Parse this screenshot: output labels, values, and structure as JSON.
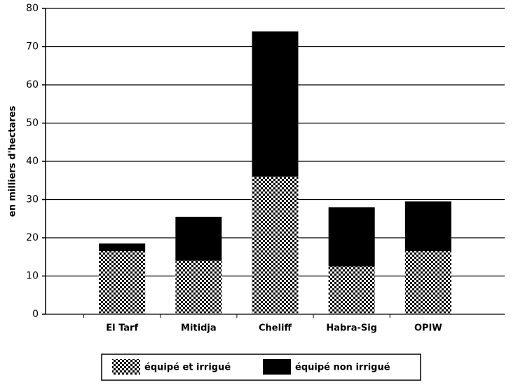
{
  "chart_data": {
    "type": "stacked_bar",
    "y_label": "en milliers d'hectares",
    "categories": [
      "El Tarf",
      "Mitidja",
      "Cheliff",
      "Habra-Sig",
      "OPIW"
    ],
    "series": [
      {
        "name": "équipé et irrigué",
        "color": "#000000",
        "pattern": "checker",
        "values": [
          16.5,
          14,
          36,
          12.5,
          16.5
        ]
      },
      {
        "name": "équipé non irrigué",
        "color": "#000000",
        "pattern": "solid",
        "values": [
          2,
          11.5,
          38,
          15.5,
          13
        ]
      }
    ],
    "ylim": [
      0,
      80
    ],
    "yticks": [
      0,
      10,
      20,
      30,
      40,
      50,
      60,
      70,
      80
    ],
    "grid": true
  }
}
